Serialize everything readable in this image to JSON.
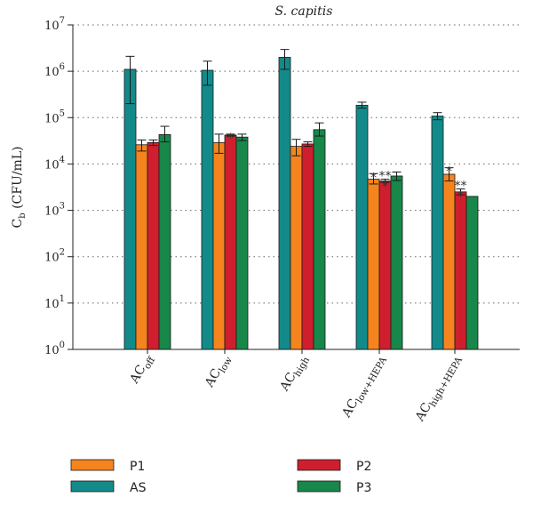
{
  "chart_data": {
    "type": "bar",
    "title": "S. capitis",
    "ylabel": {
      "main": "C",
      "sub": "b",
      "rest": " (CFU/mL)"
    },
    "yscale": "log",
    "ylim": [
      1,
      10000000
    ],
    "ytick_exponents": [
      0,
      1,
      2,
      3,
      4,
      5,
      6,
      7
    ],
    "ytick_base": "10",
    "grid": "horizontal-dotted",
    "categories": [
      {
        "main": "AC",
        "sub": "off"
      },
      {
        "main": "AC",
        "sub": "low"
      },
      {
        "main": "AC",
        "sub": "high"
      },
      {
        "main": "AC",
        "sub": "low+HEPA"
      },
      {
        "main": "AC",
        "sub": "high+HEPA"
      }
    ],
    "series": [
      {
        "name": "AS",
        "color": "#138a8a",
        "values": [
          1100000,
          1050000,
          2000000,
          185000,
          108000
        ],
        "err_low": [
          200000,
          500000,
          1100000,
          160000,
          90000
        ],
        "err_high": [
          2100000,
          1650000,
          2950000,
          215000,
          128000
        ],
        "stars": [
          "",
          "",
          "",
          "",
          ""
        ]
      },
      {
        "name": "P1",
        "color": "#f5841f",
        "values": [
          26000,
          29000,
          24000,
          4700,
          6000
        ],
        "err_low": [
          19000,
          17000,
          15000,
          3700,
          4300
        ],
        "err_high": [
          33000,
          44000,
          34000,
          6200,
          8300
        ],
        "stars": [
          "",
          "",
          "",
          "*",
          "*"
        ]
      },
      {
        "name": "P2",
        "color": "#cf1f2e",
        "values": [
          29000,
          42000,
          27000,
          4300,
          2500
        ],
        "err_low": [
          25000,
          40000,
          24000,
          4000,
          2150
        ],
        "err_high": [
          33000,
          44000,
          30000,
          4700,
          2900
        ],
        "stars": [
          "",
          "*",
          "",
          "***",
          "***"
        ]
      },
      {
        "name": "P3",
        "color": "#17874a",
        "values": [
          43000,
          38000,
          55000,
          5500,
          2000
        ],
        "err_low": [
          30000,
          32000,
          40000,
          4400,
          2000
        ],
        "err_high": [
          65000,
          44000,
          77000,
          6700,
          2000
        ],
        "stars": [
          "",
          "",
          "",
          "",
          ""
        ]
      }
    ],
    "legend": {
      "placement": "bottom",
      "entries": [
        {
          "name": "P1",
          "color": "#f5841f"
        },
        {
          "name": "P2",
          "color": "#cf1f2e"
        },
        {
          "name": "AS",
          "color": "#138a8a"
        },
        {
          "name": "P3",
          "color": "#17874a"
        }
      ]
    }
  }
}
